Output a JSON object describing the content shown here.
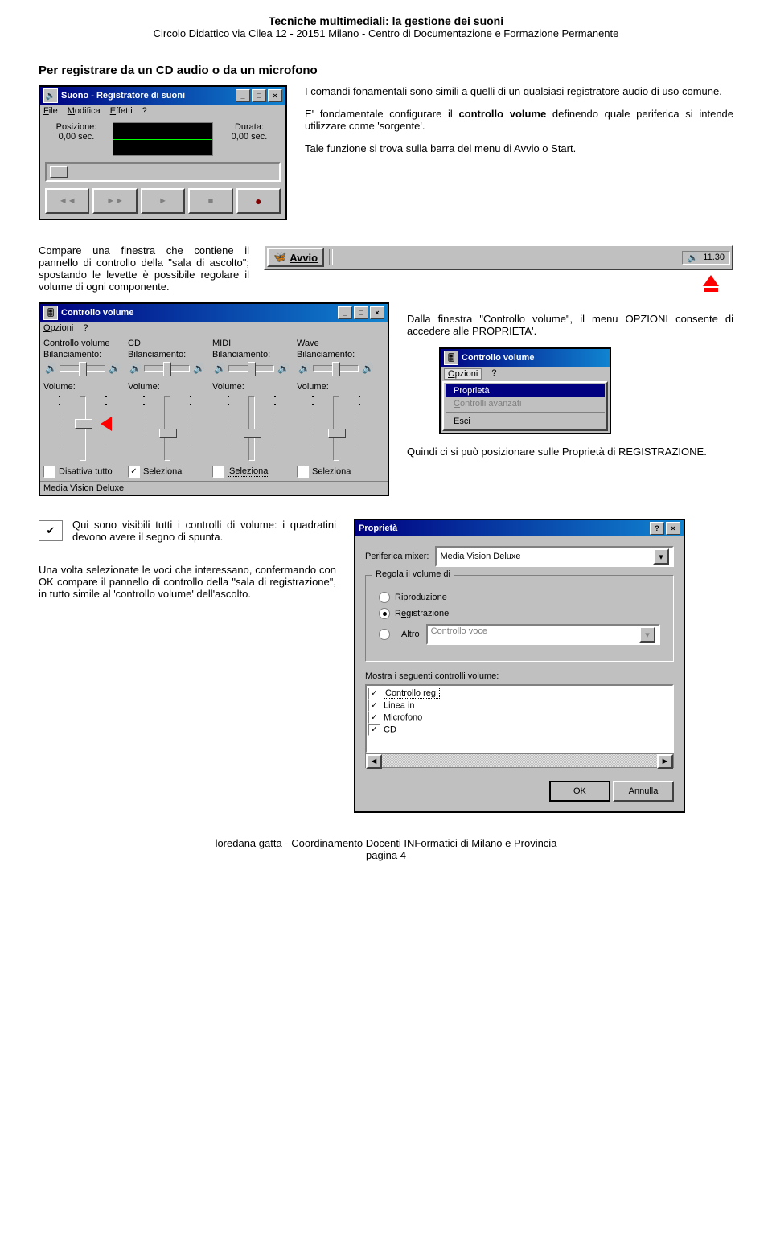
{
  "header": {
    "title": "Tecniche multimediali: la gestione dei suoni",
    "sub": "Circolo Didattico via Cilea 12 - 20151 Milano - Centro di Documentazione e Formazione Permanente"
  },
  "section1": {
    "title": "Per registrare da un CD audio o da un microfono",
    "p1a": "I comandi fonamentali sono simili a quelli di un qualsiasi registratore audio di uso comune.",
    "p1b_pre": "E' fondamentale configurare il ",
    "p1b_bold": "controllo volume",
    "p1b_post": " definendo quale periferica si intende utilizzare come 'sorgente'.",
    "p1c": "Tale funzione si trova sulla barra del menu di Avvio o Start."
  },
  "recorder": {
    "title": "Suono - Registratore di suoni",
    "menu": {
      "file": "File",
      "modifica": "Modifica",
      "effetti": "Effetti",
      "help": "?"
    },
    "labels": {
      "posizione": "Posizione:",
      "pos_val": "0,00 sec.",
      "durata": "Durata:",
      "dur_val": "0,00 sec."
    }
  },
  "section2": {
    "p": "Compare una finestra che contiene il pannello di controllo della \"sala di ascolto\"; spostando le levette è possibile regolare il volume di ogni componente."
  },
  "taskbar": {
    "avvio": "Avvio",
    "clock": "11.30"
  },
  "mixer": {
    "title": "Controllo volume",
    "menu": {
      "opzioni": "Opzioni",
      "help": "?"
    },
    "bil": "Bilanciamento:",
    "vol": "Volume:",
    "cols": [
      "Controllo volume",
      "CD",
      "MIDI",
      "Wave"
    ],
    "disattiva": "Disattiva tutto",
    "seleziona": "Seleziona",
    "status": "Media Vision Deluxe",
    "slider_pos": [
      35,
      50,
      50,
      50
    ],
    "checked": [
      false,
      true,
      false,
      false
    ],
    "dotted": [
      false,
      false,
      true,
      false
    ]
  },
  "section3": {
    "p1": "Dalla finestra \"Controllo volume\", il menu OPZIONI consente di accedere alle PROPRIETA'.",
    "p2": "Quindi ci si può posizionare sulle Proprietà di REGISTRAZIONE."
  },
  "small_mixer": {
    "title": "Controllo volume",
    "menu": {
      "opzioni": "Opzioni",
      "help": "?"
    },
    "items": {
      "proprieta": "Proprietà",
      "avanzati": "Controlli avanzati",
      "esci": "Esci"
    }
  },
  "section4": {
    "p1": "Qui sono visibili tutti i controlli di volume: i quadratini devono avere il segno di spunta.",
    "p2": "Una volta selezionate le voci che interessano, confermando con OK compare il pannello di controllo della \"sala di registrazione\", in tutto simile al 'controllo volume' dell'ascolto."
  },
  "props": {
    "title": "Proprietà",
    "periferica_lbl": "Periferica mixer:",
    "periferica_val": "Media Vision Deluxe",
    "group1": "Regola il volume di",
    "riproduzione": "Riproduzione",
    "registrazione": "Registrazione",
    "altro": "Altro",
    "altro_val": "Controllo voce",
    "group2": "Mostra i seguenti controlli volume:",
    "list": [
      "Controllo reg.",
      "Linea in",
      "Microfono",
      "CD"
    ],
    "ok": "OK",
    "annulla": "Annulla"
  },
  "footer": {
    "line1": "loredana gatta - Coordinamento Docenti INFormatici di Milano e Provincia",
    "line2": "pagina 4"
  },
  "colors": {
    "titlebar": "#000080",
    "bg": "#c0c0c0",
    "red": "#ff0000"
  }
}
